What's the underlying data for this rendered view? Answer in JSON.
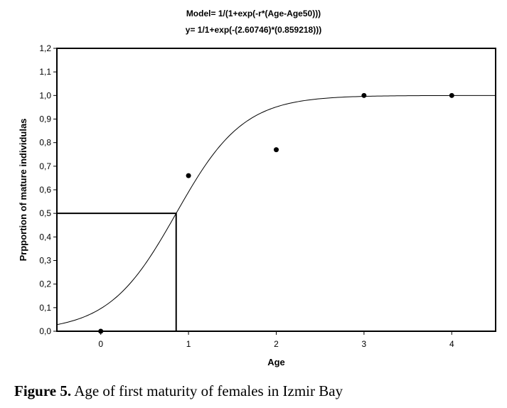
{
  "chart_data": {
    "type": "scatter",
    "title_lines": [
      "Model= 1/(1+exp(-r*(Age-Age50)))",
      "y= 1/1+exp(-(2.60746)*(0.859218)))"
    ],
    "xlabel": "Age",
    "ylabel": "Prpportion of mature individulas",
    "xlim": [
      -0.5,
      4.5
    ],
    "ylim": [
      0.0,
      1.2
    ],
    "x_ticks": [
      "0",
      "1",
      "2",
      "3",
      "4"
    ],
    "x_tick_values": [
      0,
      1,
      2,
      3,
      4
    ],
    "y_ticks": [
      "0,0",
      "0,1",
      "0,2",
      "0,3",
      "0,4",
      "0,5",
      "0,6",
      "0,7",
      "0,8",
      "0,9",
      "1,0",
      "1,1",
      "1,2"
    ],
    "y_tick_values": [
      0.0,
      0.1,
      0.2,
      0.3,
      0.4,
      0.5,
      0.6,
      0.7,
      0.8,
      0.9,
      1.0,
      1.1,
      1.2
    ],
    "points": [
      {
        "x": 0,
        "y": 0.0
      },
      {
        "x": 1,
        "y": 0.66
      },
      {
        "x": 2,
        "y": 0.77
      },
      {
        "x": 3,
        "y": 1.0
      },
      {
        "x": 4,
        "y": 1.0
      }
    ],
    "model": {
      "r": 2.60746,
      "age50": 0.859218
    },
    "age50_marker": {
      "x": 0.859218,
      "y": 0.5
    },
    "grid": false,
    "legend": "none"
  },
  "caption": {
    "label": "Figure 5.",
    "text": " Age of first maturity of females in Izmir Bay"
  }
}
